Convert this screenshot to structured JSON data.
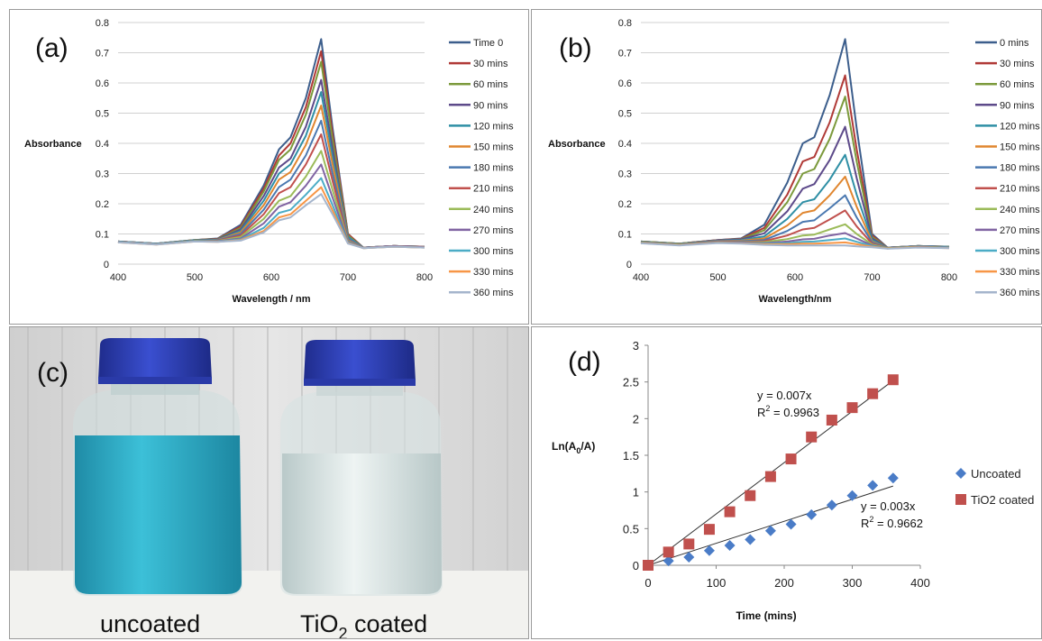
{
  "chart_data": [
    {
      "id": "a",
      "panel_label": "(a)",
      "type": "line",
      "xlabel": "Wavelength / nm",
      "ylabel": "Absorbance",
      "xlim": [
        400,
        800
      ],
      "ylim": [
        0,
        0.8
      ],
      "xticks": [
        "400",
        "500",
        "600",
        "700",
        "800"
      ],
      "yticks": [
        "0",
        "0.1",
        "0.2",
        "0.3",
        "0.4",
        "0.5",
        "0.6",
        "0.7",
        "0.8"
      ],
      "grid": "horizontal",
      "legend_position": "right",
      "x": [
        400,
        450,
        500,
        530,
        560,
        590,
        610,
        625,
        645,
        665,
        680,
        700,
        720,
        760,
        800
      ],
      "series": [
        {
          "name": "Time 0",
          "color": "#3c5e8c",
          "peak": 0.745,
          "values": [
            0.075,
            0.068,
            0.08,
            0.085,
            0.13,
            0.26,
            0.38,
            0.42,
            0.55,
            0.745,
            0.45,
            0.1,
            0.055,
            0.06,
            0.058
          ]
        },
        {
          "name": "30 mins",
          "color": "#b03a37",
          "peak": 0.705,
          "values": [
            0.075,
            0.068,
            0.08,
            0.084,
            0.125,
            0.25,
            0.36,
            0.4,
            0.52,
            0.705,
            0.43,
            0.1,
            0.055,
            0.06,
            0.058
          ]
        },
        {
          "name": "60 mins",
          "color": "#7c9a3c",
          "peak": 0.67,
          "values": [
            0.075,
            0.068,
            0.08,
            0.083,
            0.12,
            0.24,
            0.345,
            0.38,
            0.495,
            0.67,
            0.41,
            0.095,
            0.055,
            0.06,
            0.058
          ]
        },
        {
          "name": "90 mins",
          "color": "#5d4a8a",
          "peak": 0.61,
          "values": [
            0.075,
            0.068,
            0.079,
            0.082,
            0.115,
            0.225,
            0.32,
            0.35,
            0.455,
            0.61,
            0.38,
            0.09,
            0.055,
            0.06,
            0.058
          ]
        },
        {
          "name": "120 mins",
          "color": "#2f8fa5",
          "peak": 0.57,
          "values": [
            0.075,
            0.068,
            0.079,
            0.081,
            0.11,
            0.21,
            0.3,
            0.33,
            0.425,
            0.57,
            0.355,
            0.09,
            0.055,
            0.06,
            0.058
          ]
        },
        {
          "name": "150 mins",
          "color": "#e0862f",
          "peak": 0.525,
          "values": [
            0.074,
            0.067,
            0.078,
            0.08,
            0.105,
            0.195,
            0.28,
            0.305,
            0.395,
            0.525,
            0.33,
            0.085,
            0.054,
            0.06,
            0.057
          ]
        },
        {
          "name": "180 mins",
          "color": "#4a78b0",
          "peak": 0.475,
          "values": [
            0.074,
            0.067,
            0.078,
            0.079,
            0.1,
            0.18,
            0.255,
            0.28,
            0.36,
            0.475,
            0.3,
            0.085,
            0.054,
            0.06,
            0.057
          ]
        },
        {
          "name": "210 mins",
          "color": "#c0504d",
          "peak": 0.43,
          "values": [
            0.074,
            0.067,
            0.077,
            0.078,
            0.095,
            0.165,
            0.235,
            0.255,
            0.33,
            0.43,
            0.275,
            0.08,
            0.054,
            0.06,
            0.057
          ]
        },
        {
          "name": "240 mins",
          "color": "#9bbb59",
          "peak": 0.375,
          "values": [
            0.073,
            0.066,
            0.077,
            0.077,
            0.09,
            0.15,
            0.21,
            0.225,
            0.29,
            0.375,
            0.245,
            0.078,
            0.054,
            0.06,
            0.056
          ]
        },
        {
          "name": "270 mins",
          "color": "#8064a2",
          "peak": 0.33,
          "values": [
            0.073,
            0.066,
            0.076,
            0.076,
            0.085,
            0.135,
            0.19,
            0.205,
            0.26,
            0.33,
            0.22,
            0.075,
            0.054,
            0.06,
            0.056
          ]
        },
        {
          "name": "300 mins",
          "color": "#4bacc6",
          "peak": 0.285,
          "values": [
            0.073,
            0.066,
            0.076,
            0.075,
            0.082,
            0.12,
            0.17,
            0.18,
            0.23,
            0.285,
            0.195,
            0.072,
            0.053,
            0.058,
            0.055
          ]
        },
        {
          "name": "330 mins",
          "color": "#f79646",
          "peak": 0.255,
          "values": [
            0.072,
            0.065,
            0.075,
            0.074,
            0.08,
            0.11,
            0.155,
            0.165,
            0.21,
            0.255,
            0.178,
            0.07,
            0.053,
            0.058,
            0.055
          ]
        },
        {
          "name": "360 mins",
          "color": "#a5b5cc",
          "peak": 0.232,
          "values": [
            0.072,
            0.065,
            0.075,
            0.074,
            0.078,
            0.105,
            0.145,
            0.155,
            0.195,
            0.232,
            0.165,
            0.068,
            0.053,
            0.058,
            0.055
          ]
        }
      ]
    },
    {
      "id": "b",
      "panel_label": "(b)",
      "type": "line",
      "xlabel": "Wavelength/nm",
      "ylabel": "Absorbance",
      "xlim": [
        400,
        800
      ],
      "ylim": [
        0,
        0.8
      ],
      "xticks": [
        "400",
        "500",
        "600",
        "700",
        "800"
      ],
      "yticks": [
        "0",
        "0.1",
        "0.2",
        "0.3",
        "0.4",
        "0.5",
        "0.6",
        "0.7",
        "0.8"
      ],
      "grid": "horizontal",
      "legend_position": "right",
      "x": [
        400,
        450,
        500,
        530,
        560,
        590,
        610,
        625,
        645,
        665,
        680,
        700,
        720,
        760,
        800
      ],
      "series": [
        {
          "name": "0 mins",
          "color": "#3c5e8c",
          "values": [
            0.075,
            0.068,
            0.08,
            0.085,
            0.13,
            0.27,
            0.4,
            0.42,
            0.56,
            0.745,
            0.45,
            0.1,
            0.055,
            0.06,
            0.058
          ]
        },
        {
          "name": "30 mins",
          "color": "#b03a37",
          "values": [
            0.075,
            0.068,
            0.08,
            0.084,
            0.12,
            0.23,
            0.34,
            0.355,
            0.47,
            0.625,
            0.38,
            0.095,
            0.055,
            0.06,
            0.058
          ]
        },
        {
          "name": "60 mins",
          "color": "#7c9a3c",
          "values": [
            0.075,
            0.068,
            0.079,
            0.083,
            0.112,
            0.205,
            0.3,
            0.315,
            0.415,
            0.555,
            0.34,
            0.09,
            0.055,
            0.06,
            0.058
          ]
        },
        {
          "name": "90 mins",
          "color": "#5d4a8a",
          "values": [
            0.074,
            0.067,
            0.079,
            0.082,
            0.102,
            0.175,
            0.25,
            0.265,
            0.345,
            0.455,
            0.285,
            0.085,
            0.055,
            0.06,
            0.057
          ]
        },
        {
          "name": "120 mins",
          "color": "#2f8fa5",
          "values": [
            0.074,
            0.067,
            0.078,
            0.08,
            0.092,
            0.15,
            0.205,
            0.215,
            0.28,
            0.362,
            0.23,
            0.08,
            0.054,
            0.06,
            0.057
          ]
        },
        {
          "name": "150 mins",
          "color": "#e0862f",
          "values": [
            0.073,
            0.066,
            0.077,
            0.078,
            0.085,
            0.128,
            0.17,
            0.178,
            0.228,
            0.29,
            0.19,
            0.075,
            0.054,
            0.06,
            0.056
          ]
        },
        {
          "name": "180 mins",
          "color": "#4a78b0",
          "values": [
            0.073,
            0.066,
            0.076,
            0.076,
            0.08,
            0.11,
            0.14,
            0.145,
            0.185,
            0.228,
            0.155,
            0.072,
            0.054,
            0.06,
            0.056
          ]
        },
        {
          "name": "210 mins",
          "color": "#c0504d",
          "values": [
            0.072,
            0.065,
            0.075,
            0.074,
            0.076,
            0.095,
            0.115,
            0.12,
            0.148,
            0.178,
            0.125,
            0.068,
            0.053,
            0.058,
            0.055
          ]
        },
        {
          "name": "240 mins",
          "color": "#9bbb59",
          "values": [
            0.072,
            0.065,
            0.074,
            0.073,
            0.073,
            0.083,
            0.095,
            0.098,
            0.115,
            0.132,
            0.1,
            0.065,
            0.053,
            0.058,
            0.055
          ]
        },
        {
          "name": "270 mins",
          "color": "#8064a2",
          "values": [
            0.071,
            0.064,
            0.073,
            0.072,
            0.07,
            0.075,
            0.082,
            0.084,
            0.095,
            0.103,
            0.085,
            0.062,
            0.052,
            0.057,
            0.054
          ]
        },
        {
          "name": "300 mins",
          "color": "#4bacc6",
          "values": [
            0.07,
            0.063,
            0.072,
            0.07,
            0.068,
            0.07,
            0.074,
            0.075,
            0.08,
            0.085,
            0.074,
            0.06,
            0.052,
            0.056,
            0.054
          ]
        },
        {
          "name": "330 mins",
          "color": "#f79646",
          "values": [
            0.07,
            0.063,
            0.071,
            0.069,
            0.066,
            0.066,
            0.068,
            0.068,
            0.07,
            0.072,
            0.066,
            0.058,
            0.052,
            0.056,
            0.053
          ]
        },
        {
          "name": "360 mins",
          "color": "#a5b5cc",
          "values": [
            0.069,
            0.062,
            0.07,
            0.068,
            0.064,
            0.062,
            0.062,
            0.062,
            0.062,
            0.062,
            0.059,
            0.056,
            0.051,
            0.055,
            0.053
          ]
        }
      ]
    },
    {
      "id": "d",
      "panel_label": "(d)",
      "type": "scatter",
      "xlabel": "Time (mins)",
      "ylabel": "Ln(A0/A)",
      "ylabel_base": "Ln(A",
      "ylabel_sub": "0",
      "ylabel_tail": "/A)",
      "xlim": [
        0,
        400
      ],
      "ylim": [
        0,
        3
      ],
      "xticks": [
        "0",
        "100",
        "200",
        "300",
        "400"
      ],
      "yticks": [
        "0",
        "0.5",
        "1",
        "1.5",
        "2",
        "2.5",
        "3"
      ],
      "grid": "none",
      "legend_position": "right",
      "x": [
        0,
        30,
        60,
        90,
        120,
        150,
        180,
        210,
        240,
        270,
        300,
        330,
        360
      ],
      "series": [
        {
          "name": "Uncoated",
          "marker": "diamond",
          "color": "#4a7cc7",
          "values": [
            0,
            0.06,
            0.11,
            0.2,
            0.27,
            0.35,
            0.47,
            0.56,
            0.69,
            0.82,
            0.95,
            1.09,
            1.19
          ],
          "trend_slope": 0.003
        },
        {
          "name": "TiO2 coated",
          "marker": "square",
          "color": "#c0504d",
          "values": [
            0,
            0.18,
            0.29,
            0.49,
            0.73,
            0.95,
            1.21,
            1.45,
            1.75,
            1.98,
            2.15,
            2.34,
            2.53
          ],
          "trend_slope": 0.007
        }
      ],
      "annotations": {
        "coated_eq": "y = 0.007x",
        "coated_r2_label": "R",
        "coated_r2_value": " = 0.9963",
        "uncoated_eq": "y = 0.003x",
        "uncoated_r2_label": "R",
        "uncoated_r2_value": " = 0.9662",
        "r2_superscript": "2"
      }
    }
  ],
  "photo": {
    "panel_label": "(c)",
    "left_caption": "uncoated",
    "right_caption_main": "TiO",
    "right_caption_sub": "2",
    "right_caption_tail": " coated",
    "colors": {
      "cap": "#2f3fb0",
      "blue_liquid": "#2fa8c4",
      "clear_liquid": "#d9e6e6",
      "wall": "#d8d8d8",
      "shelf": "#f4f4f2"
    }
  }
}
